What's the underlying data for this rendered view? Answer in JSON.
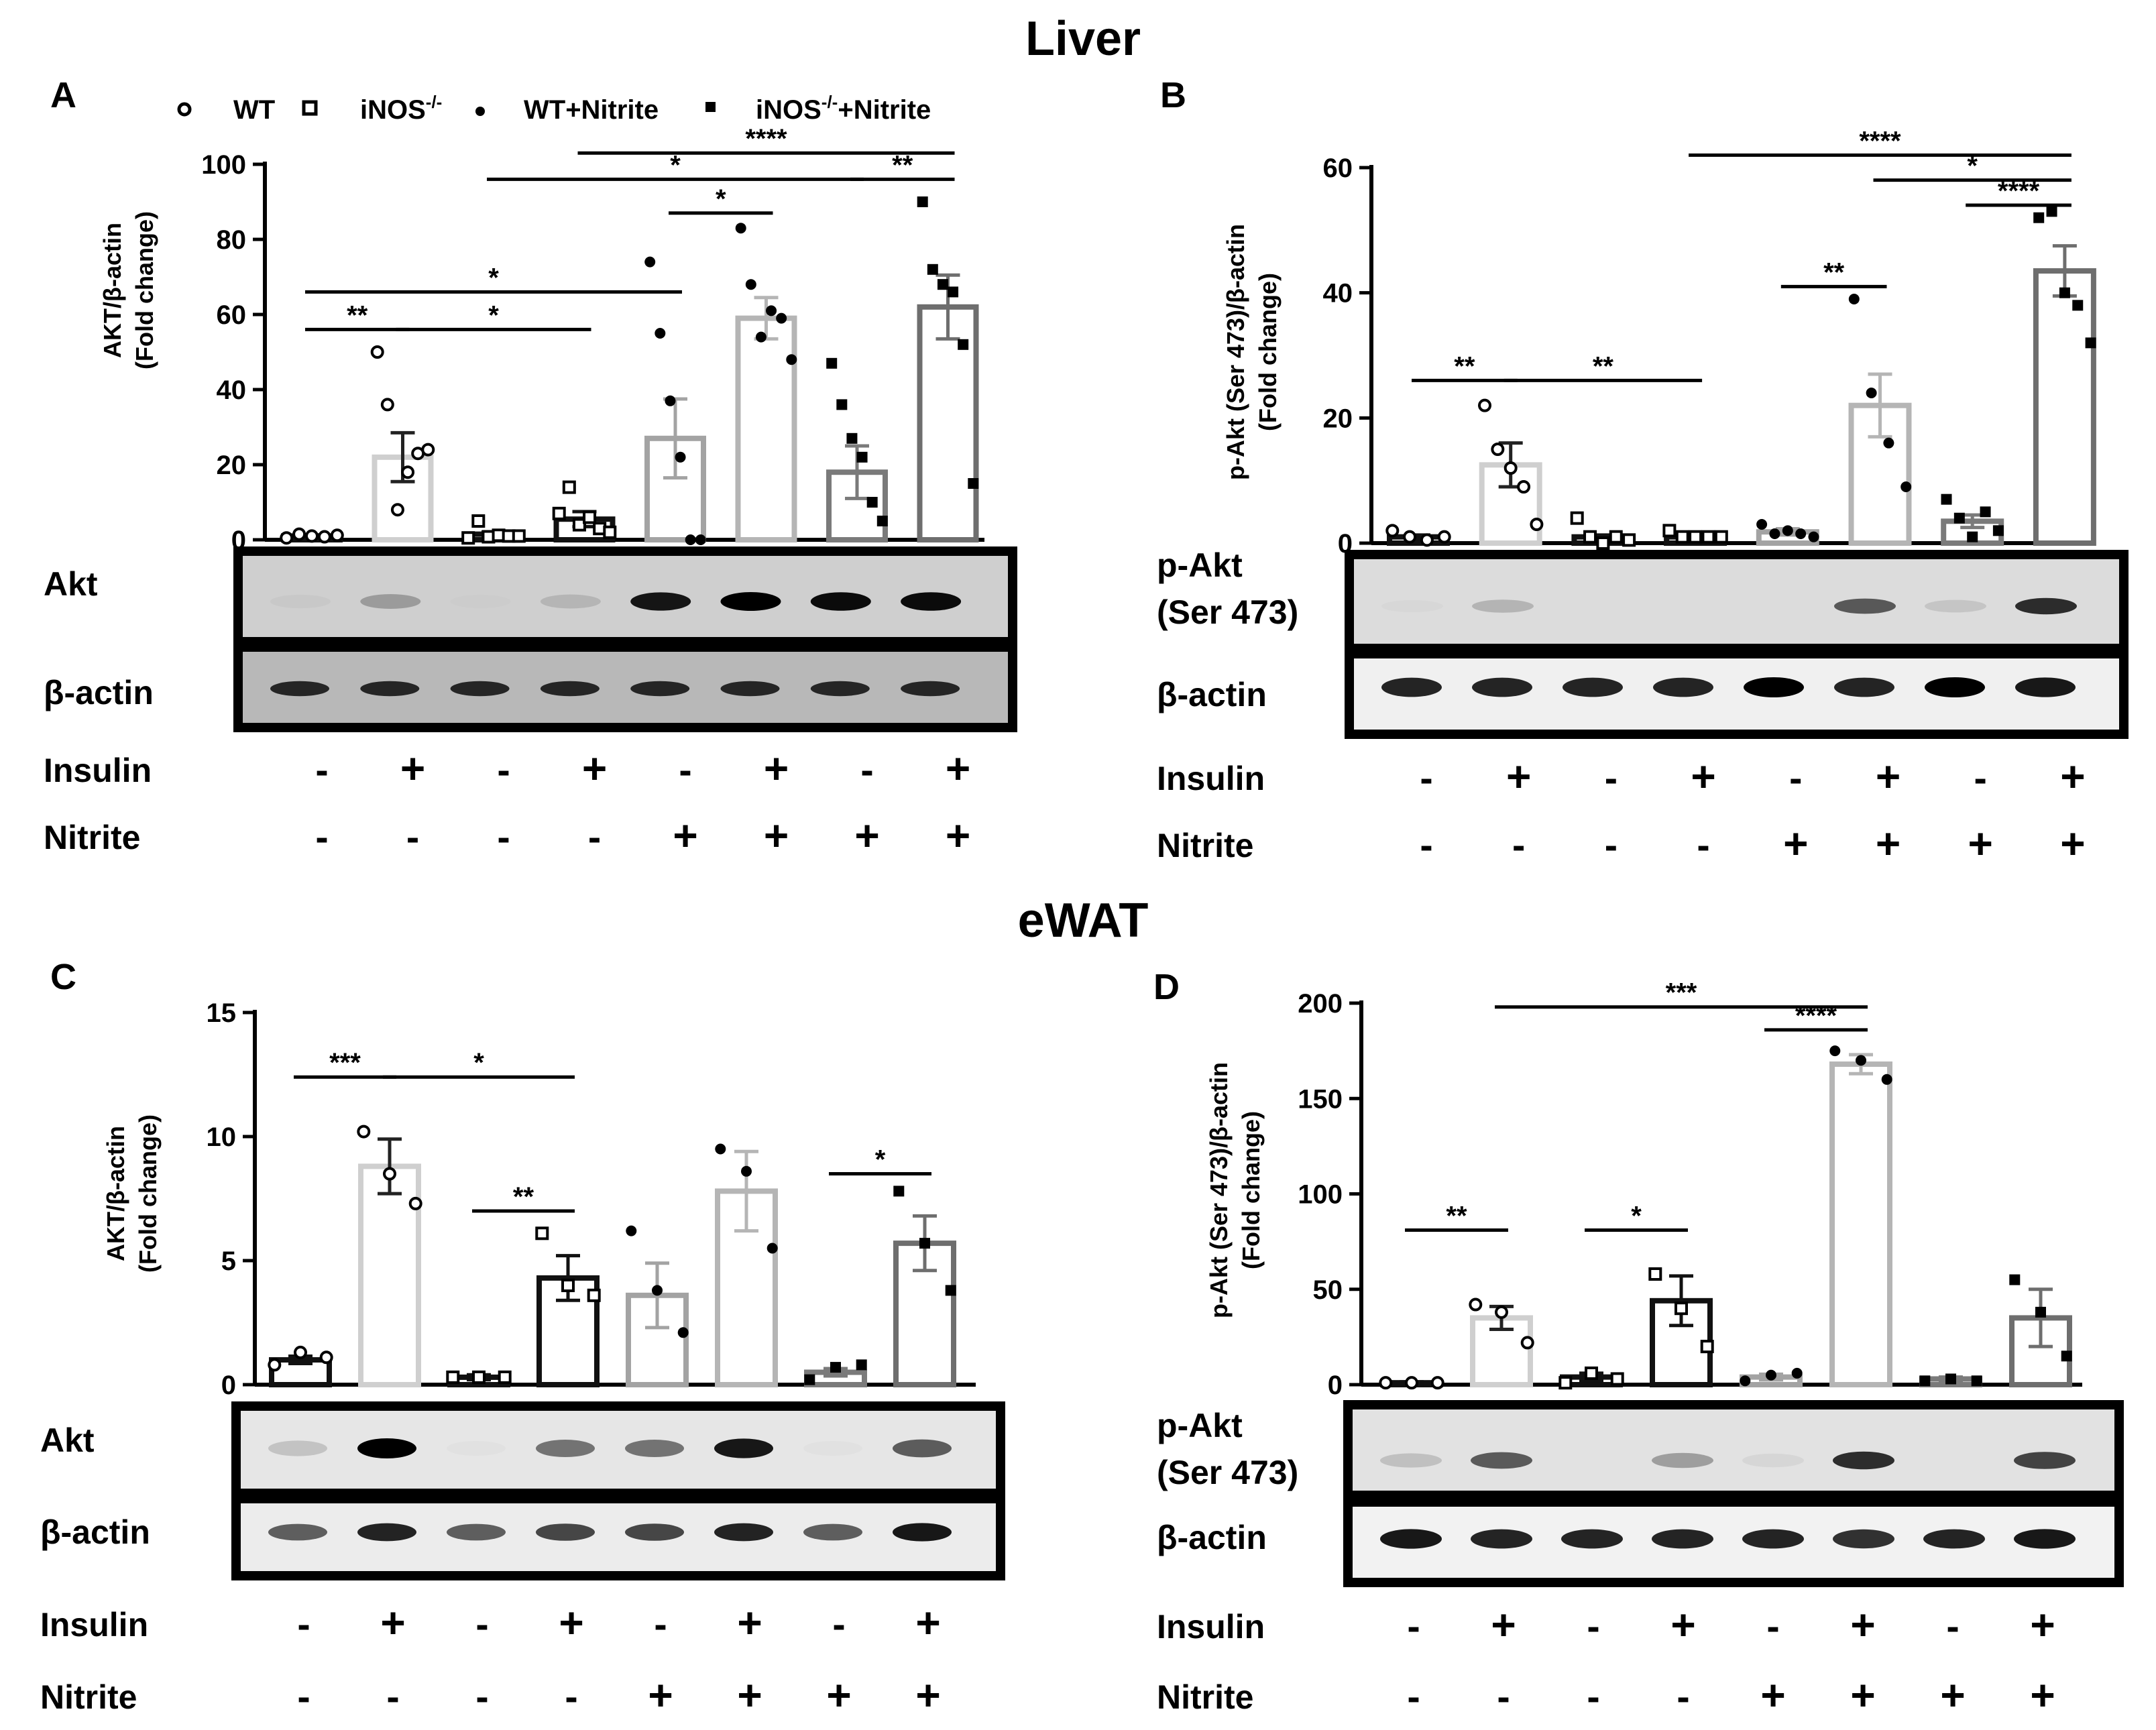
{
  "section_titles": {
    "liver": "Liver",
    "ewat": "eWAT"
  },
  "legend": {
    "wt": "WT",
    "inos": "iNOS",
    "wt_nitrite": "WT+Nitrite",
    "inos_nitrite": "iNOS",
    "ko_sup": "-/-",
    "nitrite_suffix": "+Nitrite"
  },
  "row_labels": {
    "insulin": "Insulin",
    "nitrite": "Nitrite"
  },
  "treatments": {
    "insulin": [
      "-",
      "+",
      "-",
      "+",
      "-",
      "+",
      "-",
      "+"
    ],
    "nitrite": [
      "-",
      "-",
      "-",
      "-",
      "+",
      "+",
      "+",
      "+"
    ]
  },
  "blot_labels": {
    "akt": "Akt",
    "pakt_line1": "p-Akt",
    "pakt_line2": "(Ser 473)",
    "actin": "β-actin"
  },
  "blot_bands": {
    "A_akt": [
      0.03,
      0.25,
      0.01,
      0.12,
      0.9,
      1.0,
      0.95,
      0.95
    ],
    "A_actin": [
      0.8,
      0.8,
      0.8,
      0.8,
      0.8,
      0.8,
      0.8,
      0.8
    ],
    "B_pakt": [
      0.02,
      0.18,
      0.0,
      0.0,
      0.0,
      0.6,
      0.1,
      0.8
    ],
    "B_actin": [
      0.85,
      0.85,
      0.85,
      0.85,
      1.0,
      0.85,
      1.0,
      0.9
    ],
    "C_akt": [
      0.15,
      1.0,
      0.02,
      0.5,
      0.5,
      0.9,
      0.02,
      0.6
    ],
    "C_actin": [
      0.6,
      0.85,
      0.6,
      0.7,
      0.7,
      0.85,
      0.6,
      0.9
    ],
    "D_pakt": [
      0.15,
      0.6,
      0.0,
      0.3,
      0.05,
      0.8,
      0.0,
      0.7
    ],
    "D_actin": [
      0.9,
      0.85,
      0.85,
      0.85,
      0.85,
      0.8,
      0.85,
      0.9
    ]
  },
  "chart_data": [
    {
      "id": "A",
      "label": "A",
      "type": "bar",
      "ylabel_line1": "AKT/β-actin",
      "ylabel_line2": "(Fold change)",
      "ylim": [
        0,
        100
      ],
      "ticks": [
        0,
        20,
        40,
        60,
        80,
        100
      ],
      "tick_labels": [
        "0",
        "20",
        "40",
        "60",
        "80",
        "100"
      ],
      "values": [
        1,
        22,
        1.5,
        5.5,
        27,
        59,
        18,
        62
      ],
      "errors": [
        0.3,
        6.5,
        0.5,
        2,
        10.5,
        5.5,
        7,
        8.5
      ],
      "points": [
        [
          0.5,
          1.5,
          1.0,
          0.8,
          1.2
        ],
        [
          50,
          36,
          8,
          18,
          23,
          24
        ],
        [
          0.5,
          5,
          0.8,
          1.2,
          1.0,
          1.0
        ],
        [
          7,
          14,
          4,
          6,
          3,
          2
        ],
        [
          74,
          55,
          37,
          22,
          0,
          0
        ],
        [
          83,
          68,
          54,
          61,
          59,
          48
        ],
        [
          47,
          36,
          27,
          22,
          10,
          5
        ],
        [
          90,
          72,
          68,
          66,
          52,
          15
        ]
      ],
      "sig_lines": [
        {
          "from": 1,
          "to": 2,
          "label": "**",
          "y": 56
        },
        {
          "from": 2,
          "to": 4,
          "label": "*",
          "y": 56
        },
        {
          "from": 1,
          "to": 5,
          "label": "*",
          "y": 66
        },
        {
          "from": 5,
          "to": 6,
          "label": "*",
          "y": 87
        },
        {
          "from": 3,
          "to": 7,
          "label": "*",
          "y": 96
        },
        {
          "from": 7,
          "to": 8,
          "label": "**",
          "y": 96
        },
        {
          "from": 4,
          "to": 8,
          "label": "****",
          "y": 103
        }
      ]
    },
    {
      "id": "B",
      "label": "B",
      "type": "bar",
      "ylabel_line1": "p-Akt (Ser 473)/β-actin",
      "ylabel_line2": "(Fold change)",
      "ylim": [
        0,
        60
      ],
      "ticks": [
        0,
        20,
        40,
        60
      ],
      "tick_labels": [
        "0",
        "20",
        "40",
        "60"
      ],
      "values": [
        1,
        12.5,
        1,
        1,
        1.8,
        22,
        3.5,
        43.5
      ],
      "errors": [
        0.3,
        3.5,
        0.3,
        0.3,
        0.5,
        5,
        1,
        4
      ],
      "points": [
        [
          2,
          1,
          0.5,
          1
        ],
        [
          22,
          15,
          12,
          9,
          3
        ],
        [
          4,
          1,
          0,
          1,
          0.5
        ],
        [
          2,
          1,
          1,
          1,
          1
        ],
        [
          3,
          1.5,
          2,
          1.5,
          1
        ],
        [
          39,
          24,
          16,
          9
        ],
        [
          7,
          4,
          1,
          5,
          2
        ],
        [
          52,
          53,
          40,
          38,
          32
        ]
      ],
      "sig_lines": [
        {
          "from": 1,
          "to": 2,
          "label": "**",
          "y": 26
        },
        {
          "from": 2,
          "to": 4,
          "label": "**",
          "y": 26
        },
        {
          "from": 5,
          "to": 6,
          "label": "**",
          "y": 41
        },
        {
          "from": 7,
          "to": 8,
          "label": "****",
          "y": 54
        },
        {
          "from": 6,
          "to": 8,
          "label": "*",
          "y": 58
        },
        {
          "from": 4,
          "to": 8,
          "label": "****",
          "y": 62
        }
      ]
    },
    {
      "id": "C",
      "label": "C",
      "type": "bar",
      "ylabel_line1": "AKT/β-actin",
      "ylabel_line2": "(Fold change)",
      "ylim": [
        0,
        15
      ],
      "ticks": [
        0,
        5,
        10,
        15
      ],
      "tick_labels": [
        "0",
        "5",
        "10",
        "15"
      ],
      "values": [
        1,
        8.8,
        0.3,
        4.3,
        3.6,
        7.8,
        0.5,
        5.7
      ],
      "errors": [
        0.15,
        1.1,
        0.1,
        0.9,
        1.3,
        1.6,
        0.15,
        1.1
      ],
      "points": [
        [
          0.8,
          1.3,
          1.1
        ],
        [
          10.2,
          8.5,
          7.3
        ],
        [
          0.3,
          0.3,
          0.3
        ],
        [
          6.1,
          4.0,
          3.6
        ],
        [
          6.2,
          3.8,
          2.1
        ],
        [
          9.5,
          8.6,
          5.5
        ],
        [
          0.2,
          0.7,
          0.8
        ],
        [
          7.8,
          5.7,
          3.8
        ]
      ],
      "sig_lines": [
        {
          "from": 1,
          "to": 2,
          "label": "***",
          "y": 12.4
        },
        {
          "from": 2,
          "to": 4,
          "label": "*",
          "y": 12.4
        },
        {
          "from": 3,
          "to": 4,
          "label": "**",
          "y": 7
        },
        {
          "from": 7,
          "to": 8,
          "label": "*",
          "y": 8.5
        }
      ]
    },
    {
      "id": "D",
      "label": "D",
      "type": "bar",
      "ylabel_line1": "p-Akt (Ser 473)/β-actin",
      "ylabel_line2": "(Fold change)",
      "ylim": [
        0,
        200
      ],
      "ticks": [
        0,
        50,
        100,
        150,
        200
      ],
      "tick_labels": [
        "0",
        "50",
        "100",
        "150",
        "200"
      ],
      "values": [
        1,
        35,
        4,
        44,
        4,
        168,
        3,
        35
      ],
      "errors": [
        0.5,
        6,
        2,
        13,
        1.5,
        5,
        1,
        15
      ],
      "points": [
        [
          1,
          1,
          1
        ],
        [
          42,
          38,
          22
        ],
        [
          1,
          6,
          3
        ],
        [
          58,
          40,
          20
        ],
        [
          2,
          5,
          6
        ],
        [
          175,
          170,
          160
        ],
        [
          2,
          3,
          2
        ],
        [
          55,
          38,
          15
        ]
      ],
      "sig_lines": [
        {
          "from": 1,
          "to": 2,
          "label": "**",
          "y": 81
        },
        {
          "from": 3,
          "to": 4,
          "label": "*",
          "y": 81
        },
        {
          "from": 5,
          "to": 6,
          "label": "****",
          "y": 186
        },
        {
          "from": 2,
          "to": 6,
          "label": "***",
          "y": 198
        }
      ]
    }
  ]
}
